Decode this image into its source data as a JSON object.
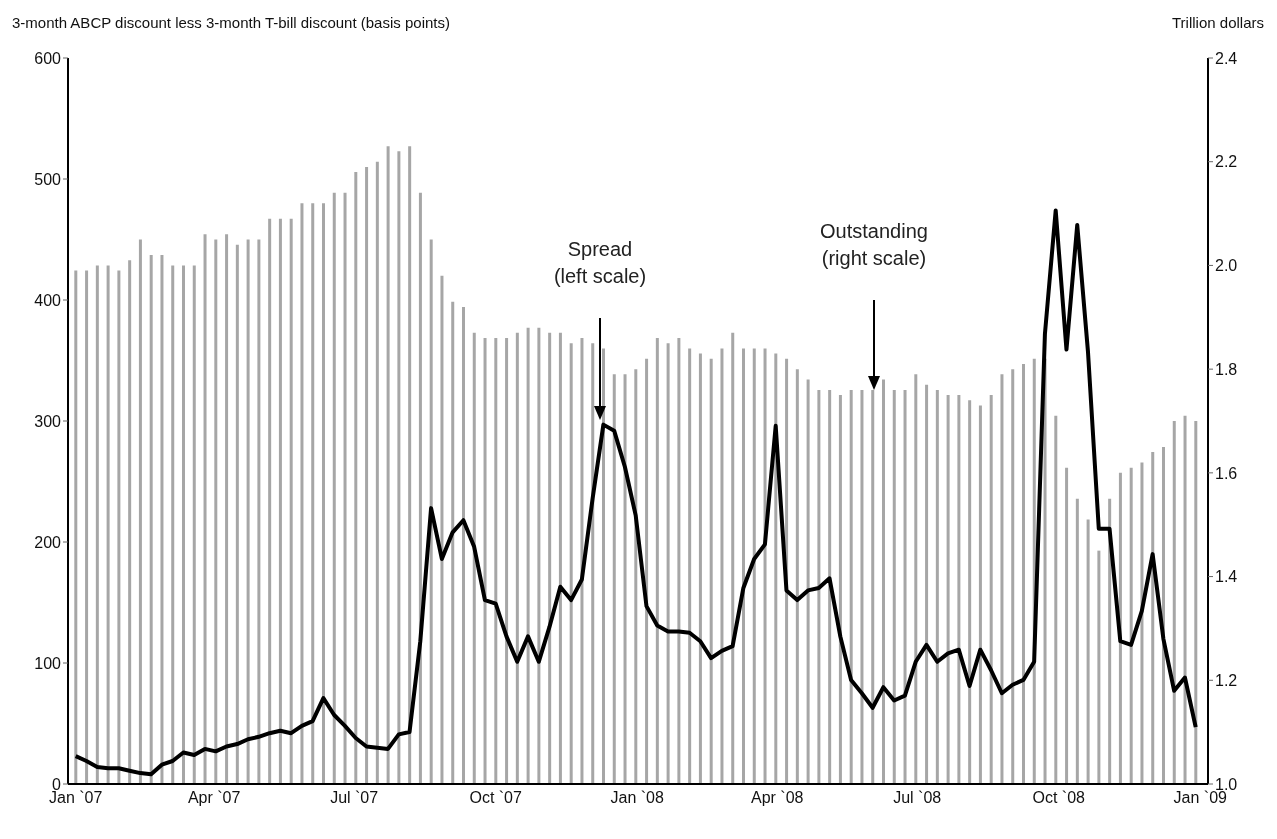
{
  "chart_data": {
    "type": "bar",
    "ylabel": "3-month ABCP discount less 3-month T-bill discount (basis points)",
    "y2label": "Trillion dollars",
    "annotations": [
      "Spread\n(left scale)",
      "Outstanding\n(right scale)"
    ],
    "x": [
      "2007-01-01",
      "2007-01-08",
      "2007-01-15",
      "2007-01-22",
      "2007-01-29",
      "2007-02-05",
      "2007-02-12",
      "2007-02-19",
      "2007-02-26",
      "2007-03-05",
      "2007-03-12",
      "2007-03-19",
      "2007-03-26",
      "2007-04-02",
      "2007-04-09",
      "2007-04-16",
      "2007-04-23",
      "2007-04-30",
      "2007-05-07",
      "2007-05-14",
      "2007-05-21",
      "2007-05-28",
      "2007-06-04",
      "2007-06-11",
      "2007-06-18",
      "2007-06-25",
      "2007-07-02",
      "2007-07-09",
      "2007-07-16",
      "2007-07-23",
      "2007-07-30",
      "2007-08-06",
      "2007-08-13",
      "2007-08-20",
      "2007-08-27",
      "2007-09-03",
      "2007-09-10",
      "2007-09-17",
      "2007-09-24",
      "2007-10-01",
      "2007-10-08",
      "2007-10-15",
      "2007-10-22",
      "2007-10-29",
      "2007-11-05",
      "2007-11-12",
      "2007-11-19",
      "2007-11-26",
      "2007-12-03",
      "2007-12-10",
      "2007-12-17",
      "2007-12-24",
      "2007-12-31",
      "2008-01-07",
      "2008-01-14",
      "2008-01-21",
      "2008-01-28",
      "2008-02-04",
      "2008-02-11",
      "2008-02-18",
      "2008-02-25",
      "2008-03-03",
      "2008-03-10",
      "2008-03-17",
      "2008-03-24",
      "2008-03-31",
      "2008-04-07",
      "2008-04-14",
      "2008-04-21",
      "2008-04-28",
      "2008-05-05",
      "2008-05-12",
      "2008-05-19",
      "2008-05-26",
      "2008-06-02",
      "2008-06-09",
      "2008-06-16",
      "2008-06-23",
      "2008-06-30",
      "2008-07-07",
      "2008-07-14",
      "2008-07-21",
      "2008-07-28",
      "2008-08-04",
      "2008-08-11",
      "2008-08-18",
      "2008-08-25",
      "2008-09-01",
      "2008-09-08",
      "2008-09-15",
      "2008-09-22",
      "2008-09-29",
      "2008-10-06",
      "2008-10-13",
      "2008-10-20",
      "2008-10-27",
      "2008-11-03",
      "2008-11-10",
      "2008-11-17",
      "2008-11-24",
      "2008-12-01",
      "2008-12-08",
      "2008-12-15",
      "2008-12-22",
      "2008-12-29"
    ],
    "series": [
      {
        "axis": "y2",
        "color": "#a6a6a6",
        "values": [
          1.99,
          1.99,
          2.0,
          2.0,
          1.99,
          2.01,
          2.05,
          2.02,
          2.02,
          2.0,
          2.0,
          2.0,
          2.06,
          2.05,
          2.06,
          2.04,
          2.05,
          2.05,
          2.09,
          2.09,
          2.09,
          2.12,
          2.12,
          2.12,
          2.14,
          2.14,
          2.18,
          2.19,
          2.2,
          2.23,
          2.22,
          2.23,
          2.14,
          2.05,
          1.98,
          1.93,
          1.92,
          1.87,
          1.86,
          1.86,
          1.86,
          1.87,
          1.88,
          1.88,
          1.87,
          1.87,
          1.85,
          1.86,
          1.85,
          1.84,
          1.79,
          1.79,
          1.8,
          1.82,
          1.86,
          1.85,
          1.86,
          1.84,
          1.83,
          1.82,
          1.84,
          1.87,
          1.84,
          1.84,
          1.84,
          1.83,
          1.82,
          1.8,
          1.78,
          1.76,
          1.76,
          1.75,
          1.76,
          1.76,
          1.76,
          1.78,
          1.76,
          1.76,
          1.79,
          1.77,
          1.76,
          1.75,
          1.75,
          1.74,
          1.73,
          1.75,
          1.79,
          1.8,
          1.81,
          1.82,
          1.82,
          1.71,
          1.61,
          1.55,
          1.51,
          1.45,
          1.55,
          1.6,
          1.61,
          1.62,
          1.64,
          1.65,
          1.7,
          1.71,
          1.7
        ]
      },
      {
        "type": "line",
        "color": "#000000",
        "values": [
          23,
          19,
          14,
          13,
          13,
          11,
          9,
          8,
          16,
          19,
          26,
          24,
          29,
          27,
          31,
          33,
          37,
          39,
          42,
          44,
          42,
          48,
          52,
          71,
          57,
          48,
          38,
          31,
          30,
          29,
          41,
          43,
          118,
          228,
          186,
          208,
          218,
          196,
          152,
          149,
          122,
          101,
          122,
          101,
          130,
          163,
          152,
          169,
          236,
          297,
          292,
          262,
          222,
          147,
          131,
          126,
          126,
          125,
          118,
          104,
          110,
          114,
          162,
          186,
          198,
          296,
          160,
          152,
          160,
          162,
          170,
          122,
          86,
          75,
          63,
          80,
          69,
          73,
          101,
          115,
          101,
          108,
          111,
          81,
          111,
          94,
          75,
          82,
          86,
          101,
          372,
          474,
          359,
          462,
          357,
          211,
          211,
          118,
          115,
          143,
          190,
          120,
          77,
          88,
          47
        ]
      }
    ],
    "xlim": [
      "2006-12-27",
      "2009-01-06"
    ],
    "xticks": [
      {
        "value": "2007-01-01",
        "label": "Jan `07"
      },
      {
        "value": "2007-04-01",
        "label": "Apr `07"
      },
      {
        "value": "2007-07-01",
        "label": "Jul `07"
      },
      {
        "value": "2007-10-01",
        "label": "Oct `07"
      },
      {
        "value": "2008-01-01",
        "label": "Jan `08"
      },
      {
        "value": "2008-04-01",
        "label": "Apr `08"
      },
      {
        "value": "2008-07-01",
        "label": "Jul `08"
      },
      {
        "value": "2008-10-01",
        "label": "Oct `08"
      },
      {
        "value": "2009-01-01",
        "label": "Jan `09"
      }
    ],
    "ylim": [
      0,
      600
    ],
    "yticks": [
      0,
      100,
      200,
      300,
      400,
      500,
      600
    ],
    "y2lim": [
      1.0,
      2.4
    ],
    "y2ticks": [
      {
        "value": 1.0,
        "label": "1.0"
      },
      1.2,
      1.4,
      1.6,
      1.8,
      {
        "value": 2.0,
        "label": "2.0"
      },
      2.2,
      2.4
    ]
  }
}
